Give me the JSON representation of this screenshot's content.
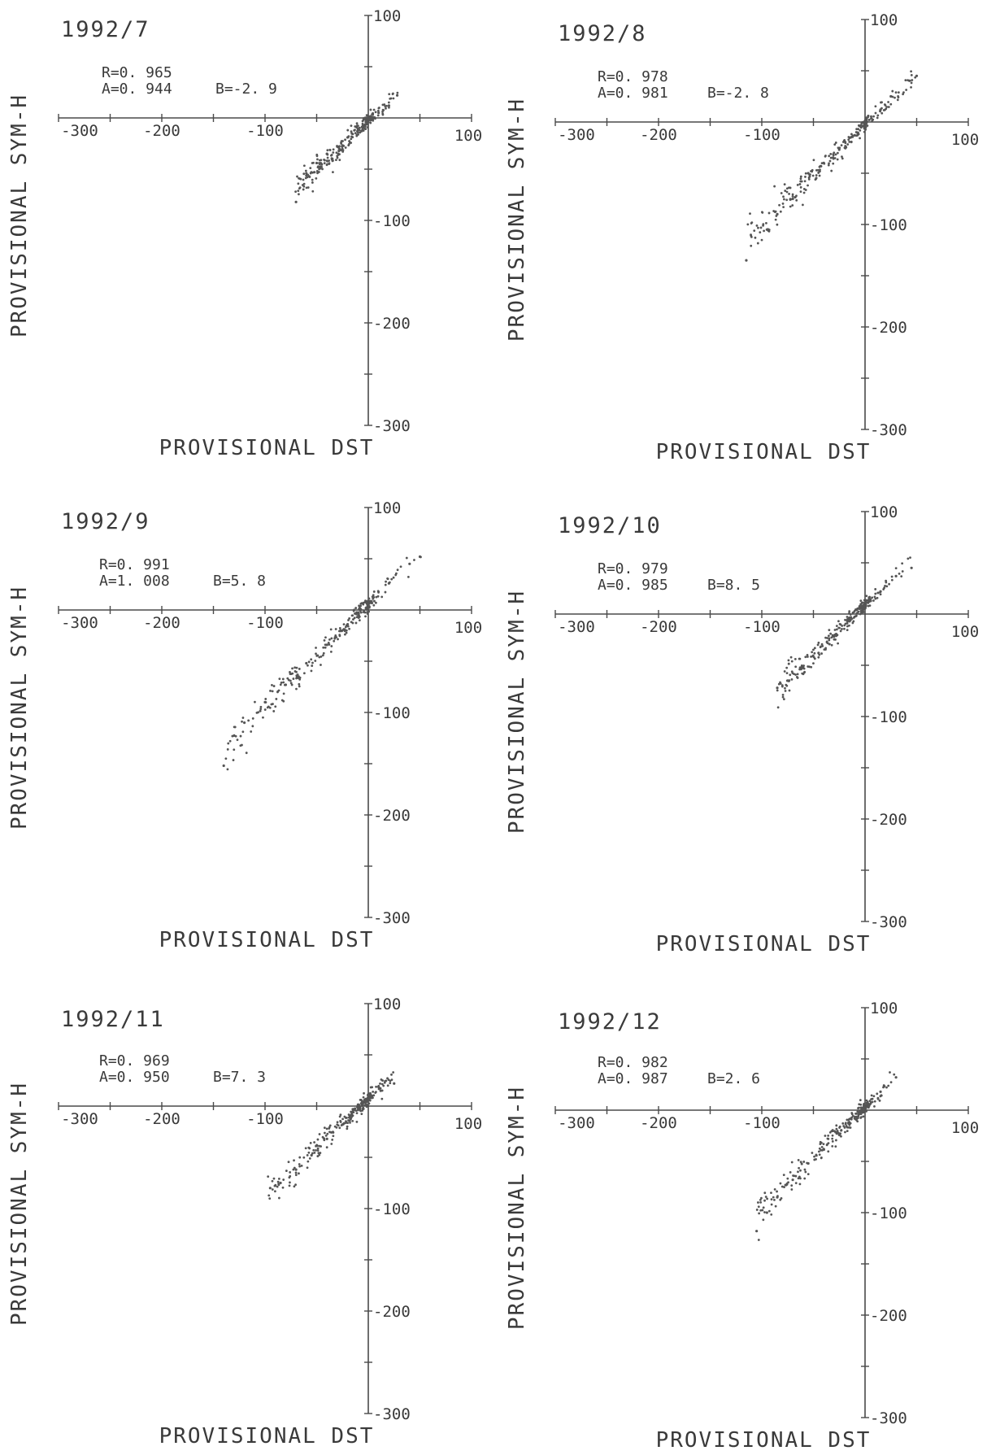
{
  "chart_data": [
    {
      "type": "scatter",
      "title": "1992/7",
      "stats": {
        "r": "R=0. 965",
        "a": "A=0. 944",
        "b": "B=-2. 9"
      },
      "xlabel": "PROVISIONAL DST",
      "ylabel": "PROVISIONAL SYM-H",
      "xlim": [
        -300,
        100
      ],
      "ylim": [
        -300,
        100
      ],
      "x_ticks": [
        "-300",
        "-200",
        "-100",
        "100"
      ],
      "y_ticks": [
        "100",
        "-100",
        "-200",
        "-300"
      ],
      "fit": {
        "a": 0.944,
        "b": -2.9
      },
      "sample_points": [
        [
          -70,
          -82
        ],
        [
          -60,
          -54
        ],
        [
          -50,
          -44
        ],
        [
          -40,
          -35
        ],
        [
          -30,
          -28
        ],
        [
          -20,
          -19
        ],
        [
          -10,
          -12
        ],
        [
          0,
          -4
        ],
        [
          10,
          5
        ],
        [
          20,
          12
        ],
        [
          28,
          22
        ]
      ]
    },
    {
      "type": "scatter",
      "title": "1992/8",
      "stats": {
        "r": "R=0. 978",
        "a": "A=0. 981",
        "b": "B=-2. 8"
      },
      "xlabel": "PROVISIONAL DST",
      "ylabel": "PROVISIONAL SYM-H",
      "xlim": [
        -300,
        100
      ],
      "ylim": [
        -300,
        100
      ],
      "x_ticks": [
        "-300",
        "-200",
        "-100",
        "100"
      ],
      "y_ticks": [
        "100",
        "-100",
        "-200",
        "-300"
      ],
      "fit": {
        "a": 0.981,
        "b": -2.8
      },
      "sample_points": [
        [
          -115,
          -135
        ],
        [
          -95,
          -105
        ],
        [
          -85,
          -90
        ],
        [
          -70,
          -75
        ],
        [
          -55,
          -50
        ],
        [
          -40,
          -40
        ],
        [
          -25,
          -27
        ],
        [
          -10,
          -13
        ],
        [
          0,
          -3
        ],
        [
          15,
          12
        ],
        [
          25,
          25
        ],
        [
          50,
          45
        ]
      ]
    },
    {
      "type": "scatter",
      "title": "1992/9",
      "stats": {
        "r": "R=0. 991",
        "a": "A=1. 008",
        "b": "B=5. 8"
      },
      "xlabel": "PROVISIONAL DST",
      "ylabel": "PROVISIONAL SYM-H",
      "xlim": [
        -300,
        100
      ],
      "ylim": [
        -300,
        100
      ],
      "x_ticks": [
        "-300",
        "-200",
        "-100",
        "100"
      ],
      "y_ticks": [
        "100",
        "-100",
        "-200",
        "-300"
      ],
      "fit": {
        "a": 1.008,
        "b": 5.8
      },
      "sample_points": [
        [
          -140,
          -152
        ],
        [
          -120,
          -110
        ],
        [
          -100,
          -90
        ],
        [
          -80,
          -73
        ],
        [
          -60,
          -52
        ],
        [
          -40,
          -34
        ],
        [
          -20,
          -14
        ],
        [
          0,
          6
        ],
        [
          20,
          26
        ],
        [
          40,
          45
        ],
        [
          50,
          52
        ]
      ]
    },
    {
      "type": "scatter",
      "title": "1992/10",
      "stats": {
        "r": "R=0. 979",
        "a": "A=0. 985",
        "b": "B=8. 5"
      },
      "xlabel": "PROVISIONAL DST",
      "ylabel": "PROVISIONAL SYM-H",
      "xlim": [
        -300,
        100
      ],
      "ylim": [
        -300,
        100
      ],
      "x_ticks": [
        "-300",
        "-200",
        "-100",
        "100"
      ],
      "y_ticks": [
        "100",
        "-100",
        "-200",
        "-300"
      ],
      "fit": {
        "a": 0.985,
        "b": 8.5
      },
      "sample_points": [
        [
          -85,
          -72
        ],
        [
          -75,
          -65
        ],
        [
          -60,
          -52
        ],
        [
          -45,
          -38
        ],
        [
          -30,
          -22
        ],
        [
          -15,
          -7
        ],
        [
          0,
          8
        ],
        [
          15,
          22
        ],
        [
          30,
          37
        ],
        [
          45,
          45
        ]
      ]
    },
    {
      "type": "scatter",
      "title": "1992/11",
      "stats": {
        "r": "R=0. 969",
        "a": "A=0. 950",
        "b": "B=7. 3"
      },
      "xlabel": "PROVISIONAL DST",
      "ylabel": "PROVISIONAL SYM-H",
      "xlim": [
        -300,
        100
      ],
      "ylim": [
        -300,
        100
      ],
      "x_ticks": [
        "-300",
        "-200",
        "-100",
        "100"
      ],
      "y_ticks": [
        "100",
        "-100",
        "-200",
        "-300"
      ],
      "fit": {
        "a": 0.95,
        "b": 7.3
      },
      "sample_points": [
        [
          -95,
          -80
        ],
        [
          -85,
          -75
        ],
        [
          -70,
          -62
        ],
        [
          -55,
          -48
        ],
        [
          -40,
          -32
        ],
        [
          -25,
          -18
        ],
        [
          -10,
          -2
        ],
        [
          0,
          7
        ],
        [
          12,
          15
        ],
        [
          25,
          22
        ]
      ]
    },
    {
      "type": "scatter",
      "title": "1992/12",
      "stats": {
        "r": "R=0. 982",
        "a": "A=0. 987",
        "b": "B=2. 6"
      },
      "xlabel": "PROVISIONAL DST",
      "ylabel": "PROVISIONAL SYM-H",
      "xlim": [
        -300,
        100
      ],
      "ylim": [
        -300,
        100
      ],
      "x_ticks": [
        "-300",
        "-200",
        "-100",
        "100"
      ],
      "y_ticks": [
        "100",
        "-100",
        "-200",
        "-300"
      ],
      "fit": {
        "a": 0.987,
        "b": 2.6
      },
      "sample_points": [
        [
          -105,
          -118
        ],
        [
          -95,
          -100
        ],
        [
          -85,
          -85
        ],
        [
          -70,
          -68
        ],
        [
          -55,
          -52
        ],
        [
          -40,
          -38
        ],
        [
          -25,
          -23
        ],
        [
          -10,
          -8
        ],
        [
          0,
          3
        ],
        [
          15,
          18
        ],
        [
          30,
          32
        ]
      ]
    }
  ]
}
